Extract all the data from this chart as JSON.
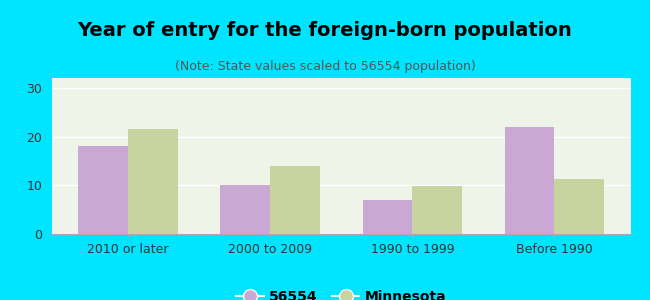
{
  "title": "Year of entry for the foreign-born population",
  "subtitle": "(Note: State values scaled to 56554 population)",
  "categories": [
    "2010 or later",
    "2000 to 2009",
    "1990 to 1999",
    "Before 1990"
  ],
  "values_56554": [
    18,
    10,
    7,
    22
  ],
  "values_minnesota": [
    21.5,
    14,
    9.8,
    11.2
  ],
  "bar_color_56554": "#c9a8d4",
  "bar_color_minnesota": "#c8d4a0",
  "background_color": "#00e5ff",
  "plot_bg_color": "#eef5e8",
  "ylim": [
    0,
    32
  ],
  "yticks": [
    0,
    10,
    20,
    30
  ],
  "bar_width": 0.35,
  "legend_label_56554": "56554",
  "legend_label_minnesota": "Minnesota",
  "title_fontsize": 14,
  "subtitle_fontsize": 9,
  "tick_fontsize": 9,
  "legend_fontsize": 10
}
